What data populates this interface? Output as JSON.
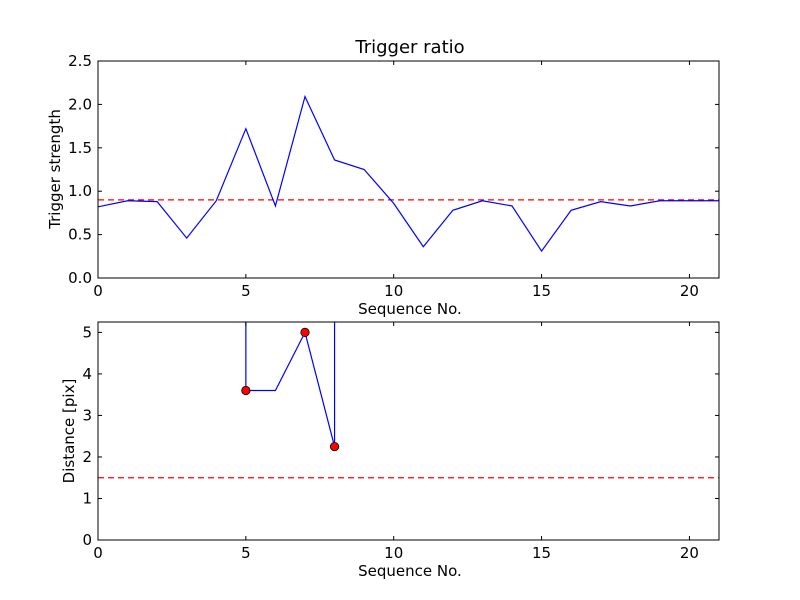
{
  "colors": {
    "line": "#0000ff",
    "threshold": "#ff0000",
    "marker_fill": "#ff0000",
    "marker_edge": "#000000",
    "background": "#ffffff"
  },
  "chart_data": [
    {
      "type": "line",
      "title": "Trigger ratio",
      "xlabel": "Sequence No.",
      "ylabel": "Trigger strength",
      "xlim": [
        0,
        21
      ],
      "ylim": [
        0,
        2.5
      ],
      "xticks": [
        0,
        5,
        10,
        15,
        20
      ],
      "yticks": [
        0.0,
        0.5,
        1.0,
        1.5,
        2.0,
        2.5
      ],
      "ytick_labels": [
        "0.0",
        "0.5",
        "1.0",
        "1.5",
        "2.0",
        "2.5"
      ],
      "grid": false,
      "x": [
        0,
        1,
        2,
        3,
        4,
        5,
        6,
        7,
        8,
        9,
        10,
        11,
        12,
        13,
        14,
        15,
        16,
        17,
        18,
        19,
        20,
        21
      ],
      "series": [
        {
          "values": [
            0.82,
            0.89,
            0.88,
            0.46,
            0.89,
            1.72,
            0.83,
            2.09,
            1.36,
            1.25,
            0.86,
            0.36,
            0.78,
            0.89,
            0.83,
            0.31,
            0.78,
            0.88,
            0.83,
            0.89,
            0.89,
            0.89
          ]
        }
      ],
      "threshold": {
        "y": 0.9,
        "style": "dashed"
      }
    },
    {
      "type": "line",
      "title": "",
      "xlabel": "Sequence No.",
      "ylabel": "Distance [pix]",
      "xlim": [
        0,
        21
      ],
      "ylim": [
        0,
        5.25
      ],
      "xticks": [
        0,
        5,
        10,
        15,
        20
      ],
      "yticks": [
        0,
        1,
        2,
        3,
        4,
        5
      ],
      "ytick_labels": [
        "0",
        "1",
        "2",
        "3",
        "4",
        "5"
      ],
      "grid": false,
      "series": [
        {
          "x": [
            5,
            5,
            6,
            7,
            8,
            8
          ],
          "values": [
            5.25,
            3.6,
            3.6,
            5.0,
            2.25,
            5.25
          ]
        }
      ],
      "markers": {
        "x": [
          5,
          7,
          8
        ],
        "values": [
          3.6,
          5.0,
          2.25
        ]
      },
      "threshold": {
        "y": 1.5,
        "style": "dashed"
      }
    }
  ]
}
